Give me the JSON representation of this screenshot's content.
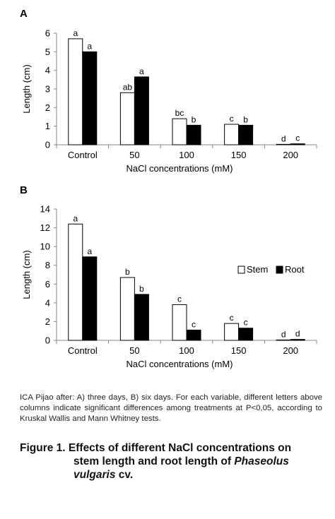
{
  "chart_data": [
    {
      "type": "bar",
      "panel_label": "A",
      "categories": [
        "Control",
        "50",
        "100",
        "150",
        "200"
      ],
      "series": [
        {
          "name": "Stem",
          "values": [
            5.7,
            2.8,
            1.4,
            1.1,
            0.0
          ],
          "letters": [
            "a",
            "ab",
            "bc",
            "c",
            "d"
          ],
          "color": "#ffffff"
        },
        {
          "name": "Root",
          "values": [
            5.0,
            3.65,
            1.05,
            1.05,
            0.05
          ],
          "letters": [
            "a",
            "a",
            "b",
            "b",
            "c"
          ],
          "color": "#000000"
        }
      ],
      "xlabel": "NaCl concentrations (mM)",
      "ylabel": "Length (cm)",
      "ylim": [
        0,
        6
      ],
      "yticks": [
        0,
        1,
        2,
        3,
        4,
        5,
        6
      ],
      "grid": false,
      "legend": null
    },
    {
      "type": "bar",
      "panel_label": "B",
      "categories": [
        "Control",
        "50",
        "100",
        "150",
        "200"
      ],
      "series": [
        {
          "name": "Stem",
          "values": [
            12.4,
            6.7,
            3.8,
            1.8,
            0.0
          ],
          "letters": [
            "a",
            "b",
            "c",
            "c",
            "d"
          ],
          "color": "#ffffff"
        },
        {
          "name": "Root",
          "values": [
            8.9,
            4.9,
            1.1,
            1.3,
            0.1
          ],
          "letters": [
            "a",
            "b",
            "c",
            "c",
            "d"
          ],
          "color": "#000000"
        }
      ],
      "xlabel": "NaCl concentrations (mM)",
      "ylabel": "Length (cm)",
      "ylim": [
        0,
        14
      ],
      "yticks": [
        0,
        2,
        4,
        6,
        8,
        10,
        12,
        14
      ],
      "grid": false,
      "legend": "right"
    }
  ],
  "caption": "ICA Pijao after: A) three days, B) six days. For each variable, different letters above columns indicate significant differences among treatments at P<0,05, according to Kruskal Wallis and Mann Whitney tests.",
  "figure_title": {
    "prefix": "Figure 1. Effects of different NaCl concentrations on",
    "line2": "stem length and root length of ",
    "species": "Phaseolus",
    "species2": "vulgaris",
    "suffix": " cv."
  }
}
